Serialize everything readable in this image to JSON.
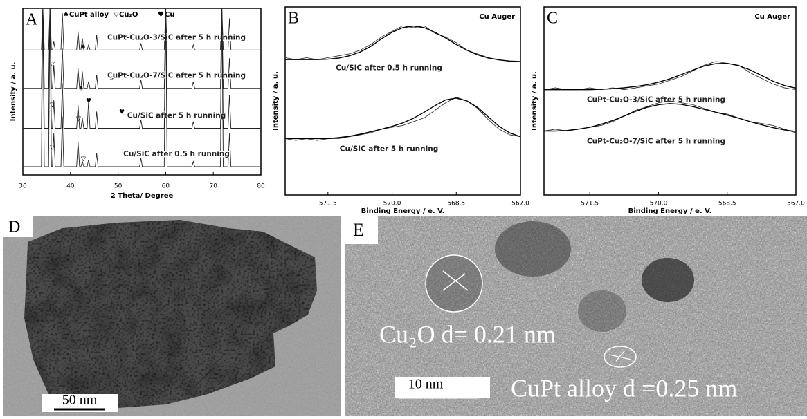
{
  "chart_data": [
    {
      "type": "line",
      "panel_label": "A",
      "xlabel": "2 Theta/ Degree",
      "ylabel": "Intensity / a. u.",
      "legend_items": [
        "CuPt alloy",
        "Cu₂O",
        "Cu"
      ],
      "xlim": [
        30,
        80
      ],
      "xticks": [
        30,
        40,
        50,
        60,
        70,
        80
      ],
      "ylim": [
        0,
        100
      ],
      "x": [
        30,
        33.9,
        34.2,
        34.5,
        35.4,
        35.7,
        36.0,
        36.2,
        36.5,
        36.8,
        38.0,
        38.3,
        38.6,
        41.3,
        41.6,
        41.9,
        42.2,
        42.5,
        42.8,
        43.5,
        43.8,
        44.1,
        45.2,
        45.5,
        45.8,
        54.5,
        54.8,
        55.1,
        59.7,
        60.0,
        60.3,
        65.5,
        65.8,
        66.1,
        71.5,
        71.8,
        72.1,
        73.1,
        73.4,
        73.7,
        80
      ],
      "series": [
        {
          "name": "CuPt-Cu₂O-3/SiC after 5 h running",
          "color": "#222222",
          "values": [
            75,
            75,
            100,
            75,
            75,
            100,
            75,
            75,
            80,
            75,
            75,
            97,
            75,
            75,
            86,
            75,
            75,
            82,
            75,
            75,
            78,
            75,
            75,
            84,
            75,
            75,
            79,
            75,
            75,
            100,
            75,
            75,
            78,
            75,
            75,
            100,
            75,
            75,
            94,
            75,
            75
          ]
        },
        {
          "name": "CuPt-Cu₂O-7/SiC after 5 h running",
          "color": "#222222",
          "values": [
            52,
            52,
            100,
            52,
            52,
            100,
            52,
            52,
            66,
            52,
            52,
            76,
            52,
            52,
            64,
            52,
            52,
            62,
            52,
            52,
            56,
            52,
            52,
            60,
            52,
            52,
            57,
            52,
            52,
            100,
            52,
            52,
            56,
            52,
            52,
            100,
            52,
            52,
            70,
            52,
            52
          ]
        },
        {
          "name": "Cu/SiC after 5 h running",
          "color": "#222222",
          "values": [
            28,
            28,
            100,
            28,
            28,
            100,
            28,
            28,
            45,
            28,
            28,
            55,
            28,
            28,
            42,
            28,
            28,
            34,
            28,
            28,
            44,
            28,
            28,
            38,
            28,
            28,
            33,
            28,
            28,
            100,
            28,
            28,
            32,
            28,
            28,
            100,
            28,
            28,
            48,
            28,
            28
          ]
        },
        {
          "name": "Cu/SiC after 0.5 h running",
          "color": "#222222",
          "values": [
            5,
            5,
            100,
            5,
            5,
            100,
            5,
            5,
            25,
            5,
            5,
            35,
            5,
            5,
            20,
            5,
            5,
            8,
            5,
            5,
            9,
            5,
            5,
            13,
            5,
            5,
            10,
            5,
            5,
            100,
            5,
            5,
            8,
            5,
            5,
            100,
            5,
            5,
            25,
            5,
            5
          ]
        }
      ]
    },
    {
      "type": "line",
      "panel_label": "B",
      "annotation": "Cu Auger",
      "xlabel": "Binding Energy / e. V.",
      "ylabel": "Intensity / a. u.",
      "xlim": [
        572.5,
        567.0
      ],
      "xticks": [
        571.5,
        {
          "value": 570,
          "label": "570.0"
        },
        568.5,
        {
          "value": 567,
          "label": "567.0"
        }
      ],
      "ylim": [
        0,
        100
      ],
      "x": [
        572.5,
        572.25,
        572.0,
        571.75,
        571.5,
        571.25,
        571.0,
        570.75,
        570.5,
        570.25,
        570.0,
        569.75,
        569.5,
        569.25,
        569.0,
        568.75,
        568.5,
        568.25,
        568.0,
        567.75,
        567.5,
        567.25,
        567.0
      ],
      "series": [
        {
          "name": "Cu/SiC after 0.5 h running",
          "color": "#333333",
          "values": [
            73,
            72,
            73,
            72,
            73,
            74,
            75,
            77,
            80,
            84,
            87,
            90,
            89,
            90,
            86,
            84,
            81,
            77,
            75,
            73,
            72,
            71,
            71
          ]
        },
        {
          "color": "#000000",
          "values": [
            72,
            72,
            72,
            72,
            72.2,
            72.8,
            74,
            76,
            79,
            83,
            86.5,
            89,
            89.8,
            89,
            86.5,
            83.5,
            80,
            77,
            74.5,
            72.8,
            71.8,
            71.2,
            71
          ]
        },
        {
          "name": "Cu/SiC after  5 h running",
          "color": "#333333",
          "values": [
            30,
            29,
            30,
            29,
            30,
            30,
            31,
            32,
            33,
            35,
            36,
            37,
            39,
            41,
            45,
            49,
            52,
            50,
            46,
            40,
            35,
            32,
            31
          ]
        },
        {
          "color": "#000000",
          "values": [
            30,
            30,
            30,
            30,
            30,
            30.5,
            31.2,
            32.3,
            33.6,
            35,
            36.5,
            38.3,
            40.8,
            44,
            47.5,
            50.5,
            51.5,
            50,
            46.5,
            41.5,
            36.5,
            33,
            31
          ]
        }
      ]
    },
    {
      "type": "line",
      "panel_label": "C",
      "annotation": "Cu Auger",
      "xlabel": "Binding Energy / e. V.",
      "ylabel": "Intensity / a. u.",
      "xlim": [
        572.5,
        567.0
      ],
      "xticks": [
        571.5,
        {
          "value": 570,
          "label": "570.0"
        },
        568.5,
        {
          "value": 567,
          "label": "567.0"
        }
      ],
      "ylim": [
        0,
        100
      ],
      "x": [
        572.5,
        572.25,
        572.0,
        571.75,
        571.5,
        571.25,
        571.0,
        570.75,
        570.5,
        570.25,
        570.0,
        569.75,
        569.5,
        569.25,
        569.0,
        568.75,
        568.5,
        568.25,
        568.0,
        567.75,
        567.5,
        567.25,
        567.0
      ],
      "series": [
        {
          "name": "CuPt-Cu₂O-3/SiC after 5 h running",
          "color": "#333333",
          "values": [
            56,
            57,
            56,
            56,
            57,
            56,
            57,
            56,
            57,
            58,
            59,
            61,
            63,
            66,
            69,
            71,
            70,
            69,
            65,
            62,
            59,
            57,
            56
          ]
        },
        {
          "color": "#000000",
          "values": [
            56,
            56,
            56,
            56,
            56,
            56.2,
            56.5,
            57,
            57.7,
            58.6,
            60,
            61.8,
            64,
            66.4,
            68.6,
            69.8,
            70,
            68.8,
            66.5,
            63.5,
            60.5,
            58.2,
            56.8
          ]
        },
        {
          "name": "CuPt-Cu₂O-7/SiC after 5 h running",
          "color": "#333333",
          "values": [
            34,
            35,
            34,
            35,
            36,
            37,
            39,
            42,
            45,
            47,
            49,
            50,
            49,
            48,
            46,
            44,
            43,
            41,
            39,
            38,
            37,
            35,
            33
          ]
        },
        {
          "color": "#000000",
          "values": [
            34,
            34,
            34.3,
            35,
            36,
            37.6,
            39.6,
            42,
            44.5,
            46.6,
            48,
            48.6,
            48.2,
            47,
            45.5,
            44,
            42.5,
            40.8,
            39,
            37.3,
            35.8,
            34.6,
            33.8
          ]
        }
      ]
    }
  ],
  "images": [
    {
      "panel_label": "D",
      "scale_bar": "50 nm"
    },
    {
      "panel_label": "E",
      "scale_bar": "10 nm",
      "annotations": [
        "Cu₂O d= 0.21 nm",
        "CuPt alloy d =0.25 nm"
      ]
    }
  ]
}
